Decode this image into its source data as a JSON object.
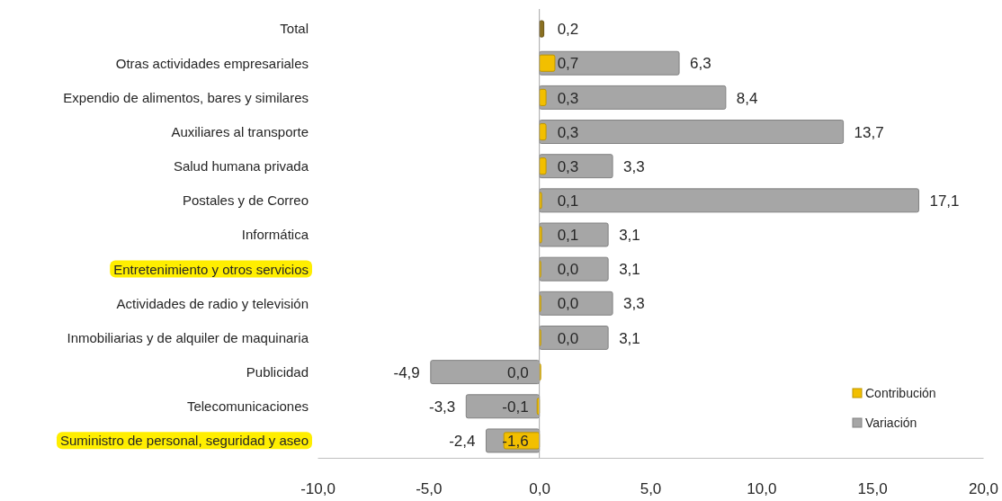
{
  "chart_data": {
    "type": "bar",
    "orientation": "horizontal",
    "categories": [
      "Total",
      "Otras actividades empresariales",
      "Expendio de alimentos, bares y similares",
      "Auxiliares al transporte",
      "Salud humana privada",
      "Postales y de Correo",
      "Informática",
      "Entretenimiento y otros servicios",
      "Actividades de radio y televisión",
      "Inmobiliarias y de alquiler de maquinaria",
      "Publicidad",
      "Telecomunicaciones",
      "Suministro de personal, seguridad y aseo"
    ],
    "series": [
      {
        "name": "Contribución",
        "color": "#f2bf00",
        "colors": [
          "#8a7020",
          "#f2bf00",
          "#f2bf00",
          "#f2bf00",
          "#f2bf00",
          "#f2bf00",
          "#f2bf00",
          "#f2bf00",
          "#f2bf00",
          "#f2bf00",
          "#f2bf00",
          "#f2bf00",
          "#f2bf00"
        ],
        "values": [
          0.2,
          0.7,
          0.3,
          0.3,
          0.3,
          0.1,
          0.1,
          0.0,
          0.0,
          0.0,
          0.0,
          -0.1,
          -1.6
        ],
        "value_labels": [
          "0,2",
          "0,7",
          "0,3",
          "0,3",
          "0,3",
          "0,1",
          "0,1",
          "0,0",
          "0,0",
          "0,0",
          "0,0",
          "-0,1",
          "-1,6"
        ]
      },
      {
        "name": "Variación",
        "color": "#a6a6a6",
        "values": [
          null,
          6.3,
          8.4,
          13.7,
          3.3,
          17.1,
          3.1,
          3.1,
          3.3,
          3.1,
          -4.9,
          -3.3,
          -2.4
        ],
        "value_labels": [
          null,
          "6,3",
          "8,4",
          "13,7",
          "3,3",
          "17,1",
          "3,1",
          "3,1",
          "3,3",
          "3,1",
          "-4,9",
          "-3,3",
          "-2,4"
        ]
      }
    ],
    "xlim": [
      -10,
      20
    ],
    "xticks": [
      {
        "value": -10,
        "label": "-10,0"
      },
      {
        "value": -5,
        "label": "-5,0"
      },
      {
        "value": 0,
        "label": "0,0"
      },
      {
        "value": 5,
        "label": "5,0"
      },
      {
        "value": 10,
        "label": "10,0"
      },
      {
        "value": 15,
        "label": "15,0"
      },
      {
        "value": 20,
        "label": "20,0"
      }
    ],
    "legend": "bottom right"
  }
}
